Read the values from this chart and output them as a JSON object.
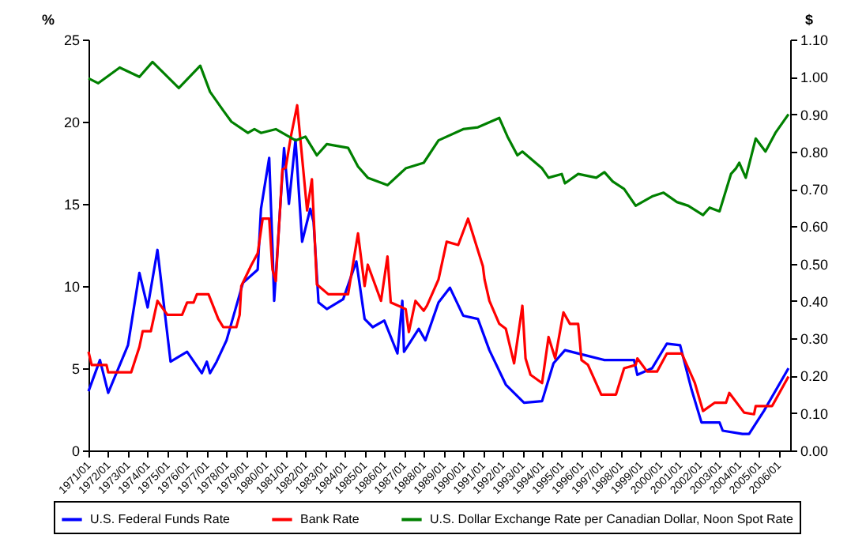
{
  "chart_data": {
    "type": "line",
    "ylabel": "%",
    "y2label": "$",
    "legend": "bottom",
    "grid": false,
    "xlim": [
      "1971-01",
      "2006-08"
    ],
    "xticks": [
      {
        "value": "1971-01",
        "label": "1971/01"
      },
      {
        "value": "1972-01",
        "label": "1972/01"
      },
      {
        "value": "1973-01",
        "label": "1973/01"
      },
      {
        "value": "1974-01",
        "label": "1974/01"
      },
      {
        "value": "1975-01",
        "label": "1975/01"
      },
      {
        "value": "1976-01",
        "label": "1976/01"
      },
      {
        "value": "1977-01",
        "label": "1977/01"
      },
      {
        "value": "1978-01",
        "label": "1978/01"
      },
      {
        "value": "1979-01",
        "label": "1979/01"
      },
      {
        "value": "1980-01",
        "label": "1980/01"
      },
      {
        "value": "1981-01",
        "label": "1981/01"
      },
      {
        "value": "1982-01",
        "label": "1982/01"
      },
      {
        "value": "1983-01",
        "label": "1983/01"
      },
      {
        "value": "1984-01",
        "label": "1984/01"
      },
      {
        "value": "1985-01",
        "label": "1985/01"
      },
      {
        "value": "1986-01",
        "label": "1986/01"
      },
      {
        "value": "1987-01",
        "label": "1987/01"
      },
      {
        "value": "1988-01",
        "label": "1988/01"
      },
      {
        "value": "1989-01",
        "label": "1989/01"
      },
      {
        "value": "1990-01",
        "label": "1990/01"
      },
      {
        "value": "1991-01",
        "label": "1991/01"
      },
      {
        "value": "1992-01",
        "label": "1992/01"
      },
      {
        "value": "1993-01",
        "label": "1993/01"
      },
      {
        "value": "1994-01",
        "label": "1994/01"
      },
      {
        "value": "1995-01",
        "label": "1995/01"
      },
      {
        "value": "1996-01",
        "label": "1996/01"
      },
      {
        "value": "1997-01",
        "label": "1997/01"
      },
      {
        "value": "1998-01",
        "label": "1998/01"
      },
      {
        "value": "1999-01",
        "label": "1999/01"
      },
      {
        "value": "2000-01",
        "label": "2000/01"
      },
      {
        "value": "2001-01",
        "label": "2001/01"
      },
      {
        "value": "2002-01",
        "label": "2002/01"
      },
      {
        "value": "2003-01",
        "label": "2003/01"
      },
      {
        "value": "2004-01",
        "label": "2004/01"
      },
      {
        "value": "2005-01",
        "label": "2005/01"
      },
      {
        "value": "2006-01",
        "label": "2006/01"
      }
    ],
    "ylim": [
      0,
      25
    ],
    "yticks": [
      0,
      5,
      10,
      15,
      20,
      25
    ],
    "y2lim": [
      0,
      1.1
    ],
    "y2ticks": [
      {
        "value": 0,
        "label": "0.00"
      },
      {
        "value": 0.1,
        "label": "0.10"
      },
      {
        "value": 0.2,
        "label": "0.20"
      },
      {
        "value": 0.3,
        "label": "0.30"
      },
      {
        "value": 0.4,
        "label": "0.40"
      },
      {
        "value": 0.5,
        "label": "0.50"
      },
      {
        "value": 0.6,
        "label": "0.60"
      },
      {
        "value": 0.7,
        "label": "0.70"
      },
      {
        "value": 0.8,
        "label": "0.80"
      },
      {
        "value": 0.9,
        "label": "0.90"
      },
      {
        "value": 1.0,
        "label": "1.00"
      },
      {
        "value": 1.1,
        "label": "1.10"
      }
    ],
    "series": [
      {
        "name": "U.S. Federal Funds Rate",
        "color": "#0000ff",
        "x": [
          "1971-01",
          "1971-08",
          "1972-01",
          "1973-01",
          "1973-08",
          "1974-01",
          "1974-07",
          "1975-03",
          "1976-01",
          "1976-10",
          "1977-01",
          "1977-03",
          "1977-07",
          "1978-01",
          "1978-11",
          "1979-08",
          "1979-10",
          "1980-03",
          "1980-05",
          "1980-06",
          "1980-12",
          "1981-03",
          "1981-07",
          "1981-11",
          "1982-04",
          "1982-06",
          "1982-09",
          "1983-02",
          "1983-12",
          "1984-08",
          "1985-01",
          "1985-06",
          "1986-01",
          "1986-09",
          "1986-12",
          "1987-01",
          "1987-10",
          "1988-02",
          "1988-10",
          "1989-05",
          "1990-01",
          "1990-10",
          "1991-05",
          "1992-03",
          "1993-02",
          "1994-01",
          "1994-08",
          "1995-03",
          "1996-03",
          "1997-03",
          "1998-09",
          "1998-11",
          "1999-08",
          "2000-05",
          "2001-01",
          "2001-08",
          "2002-02",
          "2003-01",
          "2003-03",
          "2004-03",
          "2004-07",
          "2005-04",
          "2006-07"
        ],
        "values": [
          3.6,
          5.5,
          3.5,
          6.4,
          10.8,
          8.7,
          12.2,
          5.4,
          6.0,
          4.7,
          5.4,
          4.7,
          5.4,
          6.7,
          10.2,
          11.0,
          14.7,
          17.8,
          12.3,
          9.1,
          18.4,
          15.0,
          18.9,
          12.7,
          14.7,
          13.9,
          9.0,
          8.6,
          9.2,
          11.5,
          8.0,
          7.5,
          7.9,
          5.9,
          9.1,
          6.0,
          7.4,
          6.7,
          9.0,
          9.9,
          8.2,
          8.0,
          6.1,
          4.0,
          2.9,
          3.0,
          5.3,
          6.1,
          5.8,
          5.5,
          5.5,
          4.6,
          5.0,
          6.5,
          6.4,
          3.7,
          1.7,
          1.7,
          1.2,
          1.0,
          1.0,
          2.4,
          5.0
        ]
      },
      {
        "name": "Bank Rate",
        "color": "#ff0000",
        "x": [
          "1971-01",
          "1971-03",
          "1971-12",
          "1972-01",
          "1973-03",
          "1973-08",
          "1973-10",
          "1974-03",
          "1974-07",
          "1975-01",
          "1975-10",
          "1976-01",
          "1976-05",
          "1976-07",
          "1977-02",
          "1977-08",
          "1977-11",
          "1978-07",
          "1978-09",
          "1978-10",
          "1979-04",
          "1979-08",
          "1979-11",
          "1980-03",
          "1980-05",
          "1980-07",
          "1980-11",
          "1981-01",
          "1981-04",
          "1981-08",
          "1981-11",
          "1982-02",
          "1982-05",
          "1982-08",
          "1983-03",
          "1984-03",
          "1984-09",
          "1985-01",
          "1985-03",
          "1985-11",
          "1986-03",
          "1986-05",
          "1987-02",
          "1987-04",
          "1987-08",
          "1988-01",
          "1988-03",
          "1988-10",
          "1989-03",
          "1989-10",
          "1990-04",
          "1991-01",
          "1991-02",
          "1991-05",
          "1991-11",
          "1992-03",
          "1992-08",
          "1993-01",
          "1993-03",
          "1993-06",
          "1994-01",
          "1994-05",
          "1994-09",
          "1995-02",
          "1995-06",
          "1995-11",
          "1996-01",
          "1996-05",
          "1997-01",
          "1997-10",
          "1998-03",
          "1998-10",
          "1998-11",
          "1999-05",
          "1999-11",
          "2000-05",
          "2001-02",
          "2001-10",
          "2002-03",
          "2002-10",
          "2003-05",
          "2003-07",
          "2004-04",
          "2004-10",
          "2004-11",
          "2005-09",
          "2006-07"
        ],
        "values": [
          6.0,
          5.2,
          5.2,
          4.75,
          4.75,
          6.3,
          7.25,
          7.25,
          9.1,
          8.25,
          8.25,
          9.0,
          9.0,
          9.5,
          9.5,
          8.0,
          7.5,
          7.5,
          8.25,
          10.0,
          11.25,
          12.0,
          14.1,
          14.1,
          11.0,
          10.3,
          17.1,
          17.2,
          19.0,
          21.0,
          17.8,
          14.6,
          16.5,
          10.1,
          9.5,
          9.5,
          13.2,
          10.0,
          11.3,
          9.1,
          11.8,
          9.0,
          8.6,
          7.2,
          9.1,
          8.5,
          8.8,
          10.4,
          12.7,
          12.5,
          14.1,
          11.2,
          10.4,
          9.1,
          7.7,
          7.4,
          5.3,
          8.8,
          5.6,
          4.6,
          4.1,
          6.9,
          5.6,
          8.4,
          7.7,
          7.7,
          5.5,
          5.2,
          3.4,
          3.4,
          5.0,
          5.2,
          5.6,
          4.8,
          4.8,
          5.9,
          5.9,
          4.1,
          2.4,
          2.9,
          2.9,
          3.5,
          2.3,
          2.2,
          2.7,
          2.7,
          4.5
        ]
      },
      {
        "name": "U.S. Dollar Exchange Rate per Canadian Dollar, Noon Spot Rate",
        "color": "#008000",
        "axis": "y2",
        "x": [
          "1971-01",
          "1971-07",
          "1972-08",
          "1973-08",
          "1974-04",
          "1975-08",
          "1976-09",
          "1977-03",
          "1977-11",
          "1978-04",
          "1979-02",
          "1979-06",
          "1979-10",
          "1980-07",
          "1981-07",
          "1982-01",
          "1982-08",
          "1983-02",
          "1984-03",
          "1984-09",
          "1985-03",
          "1986-03",
          "1987-02",
          "1988-01",
          "1988-10",
          "1990-01",
          "1990-10",
          "1991-11",
          "1992-04",
          "1992-10",
          "1993-01",
          "1994-01",
          "1994-05",
          "1995-01",
          "1995-03",
          "1995-11",
          "1996-10",
          "1997-03",
          "1997-08",
          "1998-03",
          "1998-10",
          "1999-08",
          "2000-03",
          "2000-11",
          "2001-06",
          "2002-03",
          "2002-07",
          "2003-01",
          "2003-08",
          "2003-11",
          "2004-01",
          "2004-05",
          "2004-11",
          "2005-05",
          "2005-11",
          "2006-07"
        ],
        "values": [
          0.996,
          0.983,
          1.025,
          1.0,
          1.04,
          0.97,
          1.03,
          0.96,
          0.91,
          0.88,
          0.85,
          0.86,
          0.85,
          0.86,
          0.83,
          0.84,
          0.79,
          0.82,
          0.81,
          0.76,
          0.73,
          0.71,
          0.755,
          0.77,
          0.83,
          0.86,
          0.865,
          0.89,
          0.84,
          0.79,
          0.8,
          0.755,
          0.73,
          0.74,
          0.715,
          0.74,
          0.73,
          0.745,
          0.72,
          0.7,
          0.655,
          0.68,
          0.69,
          0.665,
          0.655,
          0.63,
          0.65,
          0.64,
          0.74,
          0.755,
          0.77,
          0.73,
          0.835,
          0.8,
          0.85,
          0.9
        ]
      }
    ]
  }
}
